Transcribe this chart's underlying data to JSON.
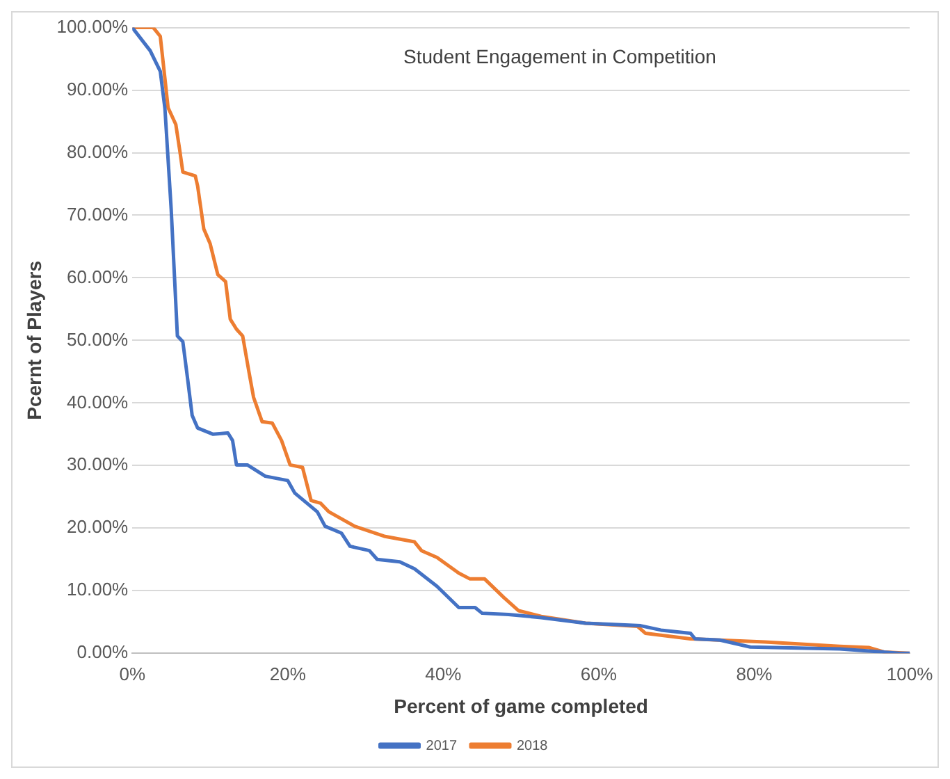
{
  "chart_data": {
    "type": "line",
    "title": "Student Engagement in Competition",
    "xlabel": "Percent of game completed",
    "ylabel": "Pcernt of Players",
    "xlim": [
      0,
      100
    ],
    "xticks": [
      {
        "value": 0,
        "label": "0%"
      },
      {
        "value": 20,
        "label": "20%"
      },
      {
        "value": 40,
        "label": "40%"
      },
      {
        "value": 60,
        "label": "60%"
      },
      {
        "value": 80,
        "label": "80%"
      },
      {
        "value": 100,
        "label": "100%"
      }
    ],
    "ylim": [
      0,
      100
    ],
    "yticks": [
      {
        "value": 0,
        "label": "0.00%"
      },
      {
        "value": 10,
        "label": "10.00%"
      },
      {
        "value": 20,
        "label": "20.00%"
      },
      {
        "value": 30,
        "label": "30.00%"
      },
      {
        "value": 40,
        "label": "40.00%"
      },
      {
        "value": 50,
        "label": "50.00%"
      },
      {
        "value": 60,
        "label": "60.00%"
      },
      {
        "value": 70,
        "label": "70.00%"
      },
      {
        "value": 80,
        "label": "80.00%"
      },
      {
        "value": 90,
        "label": "90.00%"
      },
      {
        "value": 100,
        "label": "100.00%"
      }
    ],
    "grid": "y",
    "legend": "bottom",
    "marker": "none",
    "line_style": "solid",
    "series": [
      {
        "name": "2017",
        "color": "#4472c4",
        "x": [
          0,
          2.3,
          3.6,
          4.2,
          5,
          5.8,
          6.5,
          7.1,
          7.7,
          8.4,
          10.4,
          12.3,
          12.9,
          13.4,
          14.8,
          17.1,
          20,
          20.9,
          23.8,
          24.8,
          26.9,
          28,
          30.5,
          31.5,
          34.4,
          36.3,
          39.2,
          42,
          44.1,
          45,
          48.4,
          52.6,
          58.3,
          65.4,
          68,
          71.8,
          72.4,
          75.6,
          79.5,
          91,
          98.7,
          100
        ],
        "values": [
          100,
          96.3,
          93,
          87,
          71,
          50.7,
          49.8,
          44,
          38,
          36,
          35,
          35.2,
          34,
          30.1,
          30.1,
          28.3,
          27.6,
          25.6,
          22.6,
          20.3,
          19.2,
          17.1,
          16.4,
          15,
          14.6,
          13.5,
          10.7,
          7.3,
          7.3,
          6.4,
          6.2,
          5.7,
          4.8,
          4.4,
          3.7,
          3.2,
          2.3,
          2.1,
          1,
          0.7,
          0,
          0
        ]
      },
      {
        "name": "2018",
        "color": "#ed7d31",
        "x": [
          0,
          2.7,
          3.6,
          4.2,
          4.6,
          5.6,
          6.1,
          6.5,
          8.1,
          8.4,
          9.2,
          10,
          11,
          12,
          12.6,
          13.4,
          14.2,
          15,
          15.6,
          16.7,
          18,
          19.2,
          20.3,
          21.9,
          23,
          24.2,
          25.3,
          28.6,
          32.4,
          36.3,
          37.2,
          39.2,
          42,
          43.4,
          45.3,
          47.8,
          49.7,
          52.6,
          58.3,
          65,
          66,
          71.8,
          81.4,
          91,
          94.8,
          96.7,
          100
        ],
        "values": [
          100,
          100,
          98.6,
          91.8,
          87.2,
          84.5,
          80.4,
          76.9,
          76.3,
          74.7,
          67.8,
          65.5,
          60.5,
          59.4,
          53.4,
          51.8,
          50.7,
          45,
          40.9,
          37,
          36.8,
          34,
          30.1,
          29.7,
          24.4,
          24,
          22.6,
          20.3,
          18.7,
          17.8,
          16.4,
          15.3,
          12.8,
          11.9,
          11.9,
          8.9,
          6.8,
          5.9,
          4.8,
          4.3,
          3.2,
          2.3,
          1.8,
          1.1,
          0.9,
          0.2,
          0
        ]
      }
    ]
  }
}
